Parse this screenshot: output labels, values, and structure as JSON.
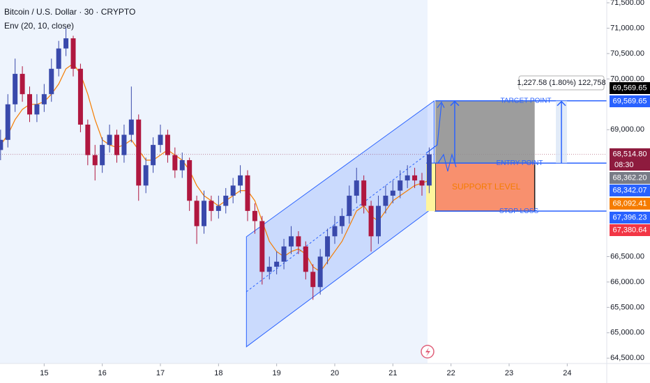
{
  "chart_data": {
    "type": "candlestick",
    "title": "Bitcoin / U.S. Dollar · 30 · CRYPTO",
    "up_color": "#3949ab",
    "down_color": "#b0173f",
    "x": [
      14.25,
      14.375,
      14.5,
      14.625,
      14.75,
      14.875,
      15.0,
      15.125,
      15.25,
      15.375,
      15.5,
      15.625,
      15.75,
      15.875,
      16.0,
      16.125,
      16.25,
      16.375,
      16.5,
      16.625,
      16.75,
      16.875,
      17.0,
      17.125,
      17.25,
      17.375,
      17.5,
      17.625,
      17.75,
      17.875,
      18.0,
      18.125,
      18.25,
      18.375,
      18.5,
      18.625,
      18.75,
      18.875,
      19.0,
      19.125,
      19.25,
      19.375,
      19.5,
      19.625,
      19.75,
      19.875,
      20.0,
      20.125,
      20.25,
      20.375,
      20.5,
      20.625,
      20.75,
      20.875,
      21.0,
      21.125,
      21.25,
      21.375,
      21.5,
      21.625
    ],
    "open": [
      68600,
      68800,
      69500,
      70100,
      69700,
      69300,
      69500,
      69700,
      70200,
      70600,
      70800,
      70200,
      69100,
      68500,
      68300,
      68700,
      68900,
      68500,
      68900,
      69200,
      67900,
      68300,
      68700,
      68900,
      68500,
      68200,
      68400,
      67600,
      67100,
      67600,
      67400,
      67500,
      67700,
      67900,
      68100,
      67400,
      67200,
      66200,
      66300,
      66400,
      66700,
      66900,
      66700,
      66200,
      65900,
      66500,
      66900,
      67100,
      67300,
      67700,
      68000,
      67500,
      66900,
      67500,
      67700,
      67800,
      68000,
      68100,
      68000,
      67900
    ],
    "high": [
      69000,
      69700,
      70400,
      70250,
      69850,
      69700,
      69900,
      70400,
      70750,
      71000,
      70850,
      70300,
      69200,
      68700,
      68850,
      69100,
      69000,
      69100,
      69850,
      69300,
      68450,
      68850,
      69100,
      69000,
      68650,
      68550,
      68450,
      67700,
      67800,
      67700,
      67700,
      67850,
      68050,
      68300,
      68200,
      67550,
      67300,
      66500,
      66600,
      66850,
      67100,
      67000,
      66800,
      66350,
      66650,
      67050,
      67300,
      67450,
      67900,
      68250,
      68100,
      67600,
      67700,
      67900,
      68000,
      68200,
      68300,
      68250,
      68150,
      68650
    ],
    "low": [
      68400,
      68650,
      69350,
      69550,
      69150,
      69150,
      69350,
      69550,
      70050,
      70450,
      70050,
      68950,
      68300,
      68000,
      68150,
      68550,
      68350,
      68350,
      68750,
      67600,
      67750,
      68150,
      68550,
      68350,
      68050,
      68050,
      67400,
      66750,
      66950,
      67200,
      67250,
      67350,
      67550,
      67750,
      67200,
      66950,
      65950,
      66050,
      66150,
      66250,
      66550,
      66550,
      66050,
      65650,
      65750,
      66350,
      66750,
      66950,
      67150,
      67550,
      67350,
      66600,
      66750,
      67350,
      67550,
      67650,
      67850,
      67850,
      67700,
      67750
    ],
    "close": [
      68800,
      69500,
      70100,
      69700,
      69300,
      69500,
      69700,
      70200,
      70600,
      70800,
      70200,
      69100,
      68500,
      68300,
      68700,
      68900,
      68500,
      68900,
      69200,
      67900,
      68300,
      68700,
      68900,
      68500,
      68200,
      68400,
      67600,
      67100,
      67600,
      67400,
      67500,
      67700,
      67900,
      68100,
      67400,
      67200,
      66200,
      66300,
      66400,
      66700,
      66900,
      66700,
      66200,
      65900,
      66500,
      66900,
      67100,
      67300,
      67700,
      68000,
      67500,
      66900,
      67500,
      67700,
      67800,
      68000,
      68100,
      68000,
      67900,
      68515
    ],
    "indicator": {
      "name": "Env (20, 10, close)",
      "color": "#f57c00",
      "values": [
        68700,
        68900,
        69200,
        69400,
        69500,
        69500,
        69550,
        69700,
        69900,
        70200,
        70300,
        70100,
        69700,
        69200,
        68800,
        68700,
        68650,
        68700,
        68800,
        68600,
        68400,
        68400,
        68500,
        68600,
        68500,
        68400,
        68200,
        67900,
        67700,
        67600,
        67500,
        67600,
        67700,
        67800,
        67800,
        67600,
        67200,
        66800,
        66600,
        66500,
        66600,
        66650,
        66550,
        66300,
        66200,
        66400,
        66600,
        66800,
        67100,
        67400,
        67500,
        67300,
        67200,
        67400,
        67600,
        67700,
        67800,
        67900,
        67950,
        68000
      ]
    },
    "xlim": [
      14.24,
      24.68
    ],
    "xticks": [
      15,
      16,
      17,
      18,
      19,
      20,
      21,
      22,
      23,
      24
    ],
    "ylim": [
      64394,
      71555
    ],
    "yticks": [
      {
        "value": 71500,
        "label": "71,500.00"
      },
      {
        "value": 71000,
        "label": "71,000.00"
      },
      {
        "value": 70500,
        "label": "70,500.00"
      },
      {
        "value": 70000,
        "label": "70,000.00"
      },
      {
        "value": 69000,
        "label": "69,000.00"
      },
      {
        "value": 66500,
        "label": "66,500.00"
      },
      {
        "value": 66000,
        "label": "66,000.00"
      },
      {
        "value": 65500,
        "label": "65,500.00"
      },
      {
        "value": 65000,
        "label": "65,000.00"
      },
      {
        "value": 64500,
        "label": "64,500.00"
      }
    ],
    "price_tags": [
      {
        "value": 69569.65,
        "label": "69,569.65",
        "color": "#000000"
      },
      {
        "value": 69569.65,
        "label": "69,569.65",
        "color": "#2962ff"
      },
      {
        "value": 68514.8,
        "label": "68,514.80",
        "color": "#8e1b3e"
      },
      {
        "value": 68362.2,
        "label": "68,362.20",
        "color": "#787b86"
      },
      {
        "value": 68342.07,
        "label": "68,342.07",
        "color": "#2962ff"
      },
      {
        "value": 68092.41,
        "label": "68,092.41",
        "color": "#f57c00"
      },
      {
        "value": 67396.23,
        "label": "67,396.23",
        "color": "#2962ff"
      },
      {
        "value": 67380.64,
        "label": "67,380.64",
        "color": "#f23645"
      }
    ],
    "countdown": "08:30",
    "channel": {
      "x": [
        18.48,
        21.71
      ],
      "upper": [
        66891,
        69566
      ],
      "lower": [
        64724,
        67481
      ],
      "color": "#2962ff"
    },
    "position": {
      "x": [
        21.73,
        23.44
      ],
      "target": 69569.65,
      "entry": 68342.07,
      "stop": 67396.23,
      "target_label": "TARGET POINT",
      "entry_label": "ENTRY POINT",
      "stop_label": "STOP LOSS",
      "zone_label": "SUPPORT LEVEL",
      "stats": "1,227.58 (1.80%) 122,758"
    }
  }
}
